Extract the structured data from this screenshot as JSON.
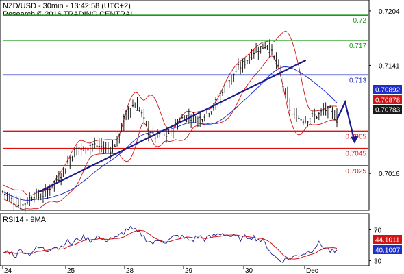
{
  "header": {
    "title": "NZD/USD - 30min - 13:42:58 (UTC+2)",
    "subtitle": "Research © 2016 TRADING CENTRAL"
  },
  "rsi_panel": {
    "title": "RSI14 - 9MA"
  },
  "colors": {
    "resistance": "#1a9a1a",
    "pivot": "#1f2fc8",
    "support": "#e01010",
    "trendline": "#1a1a8c",
    "bollinger": "#d01515",
    "moving_average": "#1f2fc8",
    "candles": "#1a1a1a",
    "rsi_line": "#1a1a8c",
    "rsi_ma": "#d01515"
  },
  "chart_data": [
    {
      "type": "candlestick",
      "title": "NZD/USD - 30min - 13:42:58 (UTC+2)",
      "ylim": [
        0.6975,
        0.7215
      ],
      "y_ticks": [
        "0.7204",
        "0.7141",
        "0.7016"
      ],
      "y_tick_values": [
        0.7204,
        0.7141,
        0.7016
      ],
      "x_ticks": [
        "24",
        "25",
        "28",
        "29",
        "30",
        "Dec"
      ],
      "levels": [
        {
          "label": "0.72",
          "value": 0.7199,
          "role": "resistance"
        },
        {
          "label": "0.717",
          "value": 0.717,
          "role": "resistance"
        },
        {
          "label": "0.713",
          "value": 0.713,
          "role": "pivot"
        },
        {
          "label": "0.7065",
          "value": 0.7065,
          "role": "support"
        },
        {
          "label": "0.7045",
          "value": 0.7045,
          "role": "support"
        },
        {
          "label": "0.7025",
          "value": 0.7025,
          "role": "support"
        }
      ],
      "price_badges": [
        {
          "label": "0.70892",
          "value": 0.70892,
          "color": "#1f2fc8"
        },
        {
          "label": "0.70878",
          "value": 0.70878,
          "color": "#d01515"
        },
        {
          "label": "0.70783",
          "value": 0.70783,
          "color": "#1a1a1a"
        }
      ],
      "close_path": [
        0.6995,
        0.6988,
        0.6982,
        0.6978,
        0.6985,
        0.6992,
        0.6988,
        0.6996,
        0.7005,
        0.7012,
        0.7025,
        0.7038,
        0.7046,
        0.7042,
        0.705,
        0.7048,
        0.7046,
        0.7044,
        0.7052,
        0.7075,
        0.7092,
        0.7096,
        0.7085,
        0.7065,
        0.7058,
        0.7062,
        0.706,
        0.7068,
        0.7078,
        0.7082,
        0.708,
        0.7078,
        0.7085,
        0.709,
        0.71,
        0.7115,
        0.7125,
        0.7135,
        0.7142,
        0.715,
        0.7158,
        0.7162,
        0.7165,
        0.715,
        0.7132,
        0.71,
        0.7082,
        0.708,
        0.7078,
        0.7082,
        0.7083,
        0.709,
        0.7088,
        0.7079
      ],
      "trendline": [
        [
          0.6994,
          0.1
        ],
        [
          0.7147,
          0.83
        ]
      ],
      "forecast": [
        0.70783,
        0.70985,
        0.7052
      ]
    },
    {
      "type": "line",
      "title": "RSI14 - 9MA",
      "ylim": [
        25,
        90
      ],
      "y_ticks": [
        "70",
        "30"
      ],
      "y_tick_values": [
        70,
        30
      ],
      "badges": [
        {
          "label": "44.1011",
          "value": 44.1011,
          "color": "#d01515"
        },
        {
          "label": "40.1007",
          "value": 40.1007,
          "color": "#1f2fc8"
        }
      ],
      "rsi_path": [
        40,
        42,
        36,
        45,
        38,
        44,
        47,
        42,
        50,
        46,
        55,
        52,
        58,
        60,
        56,
        62,
        55,
        60,
        58,
        66,
        72,
        68,
        64,
        56,
        52,
        58,
        54,
        60,
        62,
        58,
        56,
        62,
        58,
        60,
        64,
        66,
        62,
        60,
        58,
        62,
        60,
        56,
        48,
        36,
        30,
        32,
        34,
        38,
        40,
        44,
        52,
        48,
        42,
        40
      ]
    }
  ]
}
